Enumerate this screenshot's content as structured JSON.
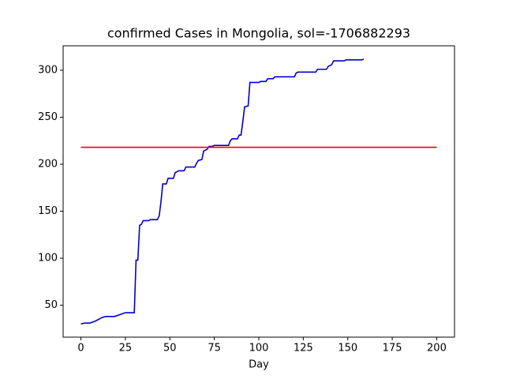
{
  "chart_data": {
    "type": "line",
    "title": "confirmed Cases in Mongolia, sol=-1706882293",
    "x_label": "Day",
    "xlim": [
      -10,
      210
    ],
    "xticks": [
      0,
      25,
      50,
      75,
      100,
      125,
      150,
      175,
      200
    ],
    "ylim": [
      16,
      326
    ],
    "yticks": [
      50,
      100,
      150,
      200,
      250,
      300
    ],
    "grid": false,
    "series": [
      {
        "color": "#0000cd",
        "x": [
          0,
          2,
          5,
          8,
          12,
          14,
          19,
          22,
          25,
          30,
          31,
          32,
          33,
          34,
          35,
          38,
          39,
          43,
          44,
          45,
          46,
          48,
          49,
          52,
          53,
          55,
          58,
          59,
          64,
          65,
          66,
          68,
          69,
          71,
          72,
          74,
          75,
          83,
          84,
          85,
          88,
          89,
          90,
          91,
          92,
          94,
          95,
          100,
          101,
          104,
          105,
          108,
          109,
          120,
          121,
          122,
          132,
          133,
          138,
          139,
          141,
          142,
          148,
          149,
          158,
          159
        ],
        "values": [
          30,
          31,
          31,
          33,
          37,
          38,
          38,
          40,
          42,
          42,
          98,
          98,
          135,
          136,
          140,
          140,
          141,
          141,
          145,
          160,
          179,
          179,
          185,
          185,
          191,
          193,
          193,
          197,
          197,
          201,
          204,
          205,
          214,
          216,
          219,
          219,
          220,
          220,
          225,
          227,
          227,
          231,
          231,
          245,
          261,
          262,
          287,
          287,
          288,
          288,
          291,
          291,
          293,
          293,
          297,
          298,
          298,
          301,
          301,
          304,
          306,
          310,
          310,
          311,
          311,
          312
        ]
      },
      {
        "color": "#ff0000",
        "x": [
          0,
          200
        ],
        "values": [
          218,
          218
        ]
      }
    ]
  }
}
